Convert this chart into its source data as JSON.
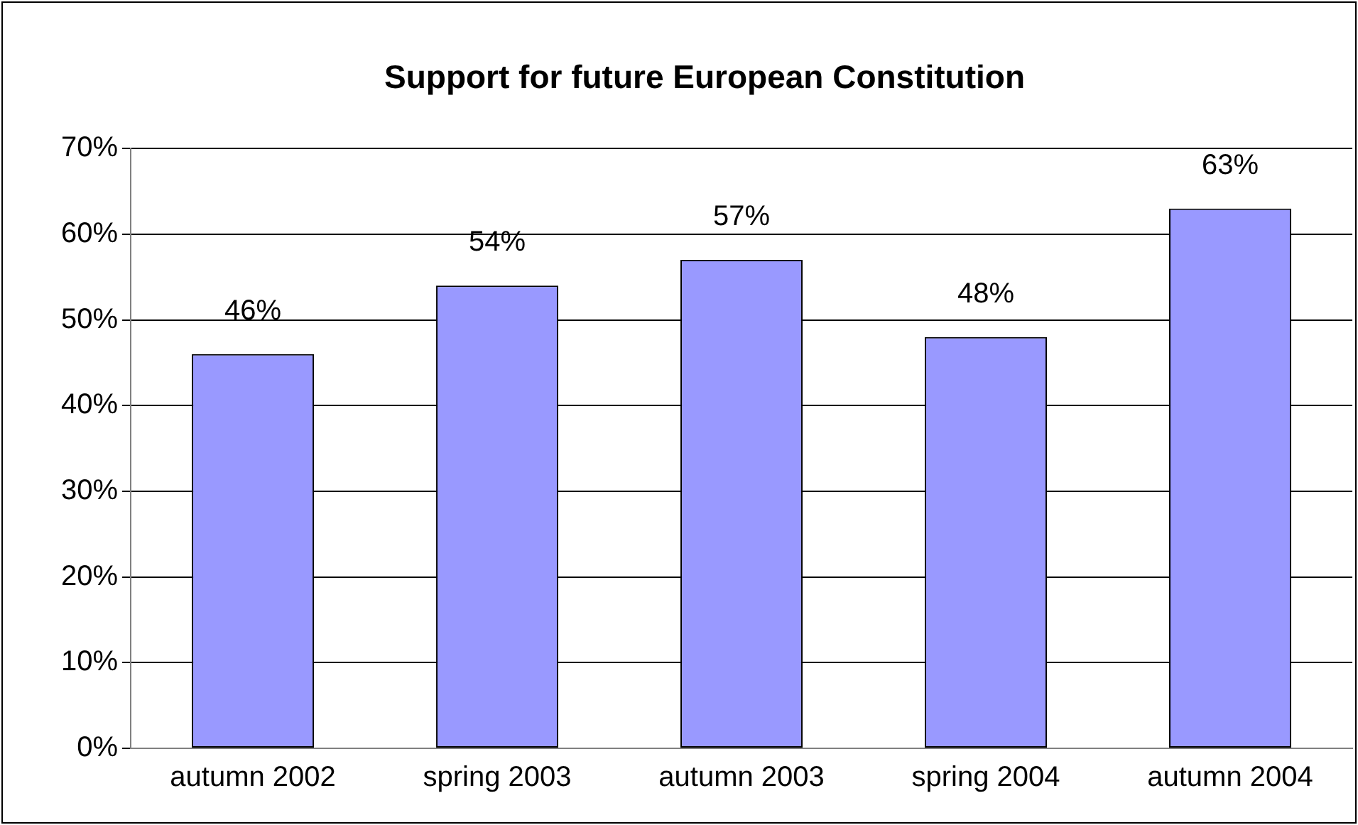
{
  "chart_data": {
    "type": "bar",
    "title": "Support for future European Constitution",
    "categories": [
      "autumn 2002",
      "spring 2003",
      "autumn 2003",
      "spring 2004",
      "autumn 2004"
    ],
    "values": [
      46,
      54,
      57,
      48,
      63
    ],
    "value_labels": [
      "46%",
      "54%",
      "57%",
      "48%",
      "63%"
    ],
    "color": "#9999ff",
    "ylim": [
      0,
      70
    ],
    "yticks": [
      {
        "value": 0,
        "label": "0%"
      },
      {
        "value": 10,
        "label": "10%"
      },
      {
        "value": 20,
        "label": "20%"
      },
      {
        "value": 30,
        "label": "30%"
      },
      {
        "value": 40,
        "label": "40%"
      },
      {
        "value": 50,
        "label": "50%"
      },
      {
        "value": 60,
        "label": "60%"
      },
      {
        "value": 70,
        "label": "70%"
      }
    ],
    "grid": "y",
    "legend": false
  }
}
